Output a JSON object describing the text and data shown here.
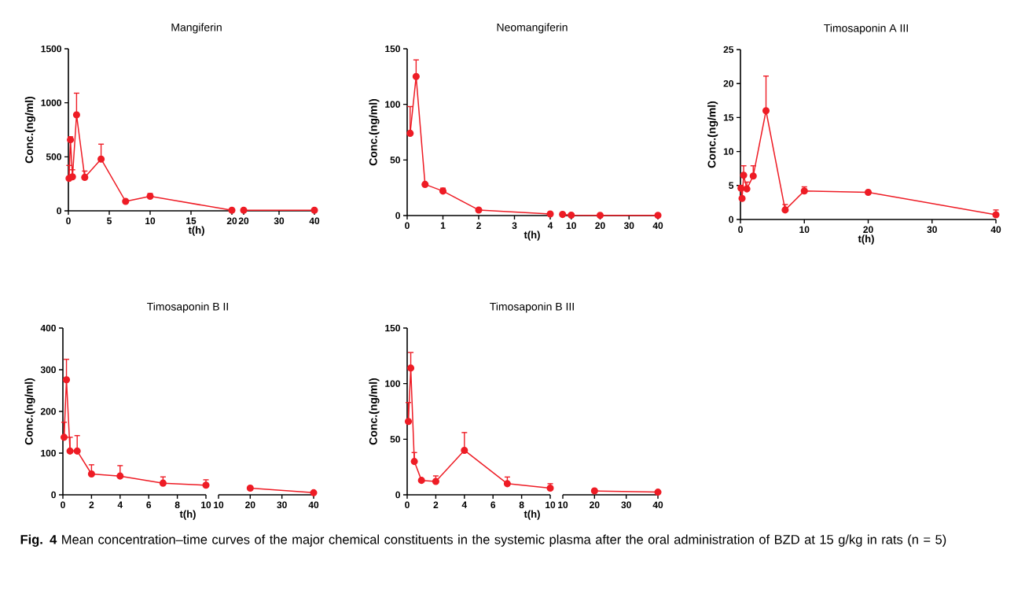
{
  "chart_data": [
    {
      "type": "line",
      "title": "Mangiferin",
      "xlabel": "t(h)",
      "ylabel": "Conc.(ng/ml)",
      "color": "#ee1c25",
      "marker": "circle",
      "x": [
        0.083,
        0.25,
        0.5,
        1,
        2,
        4,
        7,
        10,
        20
      ],
      "values": [
        300,
        658,
        315,
        888,
        310,
        479,
        87,
        135,
        5
      ],
      "errors": [
        [
          300,
          420
        ],
        [
          658,
          685
        ],
        [
          315,
          380
        ],
        [
          888,
          1089
        ],
        [
          310,
          368
        ],
        [
          479,
          617
        ],
        null,
        [
          135,
          160
        ],
        null
      ],
      "xlim": [
        0,
        20
      ],
      "xticks": [
        0,
        5,
        10,
        15,
        20
      ],
      "ylim": [
        0,
        1500
      ],
      "yticks": [
        0,
        500,
        1000,
        1500
      ],
      "annotations": [
        "**Fig. 4** Mean concentration–time curves of the major chemical constituents in the systemic plasma after the oral administration of BZD at 15 g/kg in rats (n = 5)"
      ]
    },
    {
      "type": "line",
      "color": "#ee1c25",
      "marker": "circle",
      "x": [
        20,
        40
      ],
      "values": [
        5,
        5
      ],
      "xlim": [
        20,
        40
      ],
      "xticks": [
        20,
        30,
        40
      ],
      "ylim": [
        0,
        1500
      ],
      "tick_labels": "x"
    },
    {
      "type": "line",
      "title": "Neomangiferin",
      "xlabel": "t(h)",
      "ylabel": "Conc.(ng/ml)",
      "color": "#ee1c25",
      "marker": "circle",
      "x": [
        0.083,
        0.25,
        0.5,
        1,
        2,
        4
      ],
      "values": [
        74,
        125,
        28,
        22,
        5,
        1.4
      ],
      "errors": [
        [
          74,
          98
        ],
        [
          125,
          140
        ],
        null,
        [
          22,
          24.6
        ],
        null,
        null
      ],
      "xlim": [
        0,
        4
      ],
      "xticks": [
        0,
        1,
        2,
        3,
        4
      ],
      "ylim": [
        0,
        150
      ],
      "yticks": [
        0,
        50,
        100,
        150
      ]
    },
    {
      "type": "line",
      "color": "#ee1c25",
      "marker": "circle",
      "x": [
        7,
        10,
        20,
        40
      ],
      "values": [
        1,
        0.3,
        0.2,
        0.2
      ],
      "xlim": [
        6,
        40
      ],
      "xticks": [
        10,
        20,
        30,
        40
      ],
      "ylim": [
        0,
        150
      ],
      "tick_labels": "x"
    },
    {
      "type": "line",
      "title": "Timosaponin A III",
      "xlabel": "t(h)",
      "ylabel": "Conc.(ng/ml)",
      "color": "#ee1c25",
      "marker": "circle",
      "x": [
        0.083,
        0.25,
        0.5,
        1,
        2,
        4,
        7,
        10,
        20,
        40
      ],
      "values": [
        4.6,
        3.1,
        6.5,
        4.5,
        6.4,
        16,
        1.4,
        4.2,
        4.0,
        0.7
      ],
      "errors": [
        [
          4.6,
          5.0
        ],
        null,
        [
          6.5,
          7.9
        ],
        [
          4.5,
          5.5
        ],
        [
          6.4,
          7.9
        ],
        [
          16,
          21.1
        ],
        [
          1.4,
          2.2
        ],
        [
          4.2,
          4.8
        ],
        null,
        [
          0.7,
          1.4
        ]
      ],
      "xlim": [
        0,
        40
      ],
      "xticks": [
        0,
        10,
        20,
        30,
        40
      ],
      "ylim": [
        0,
        25
      ],
      "yticks": [
        0,
        5,
        10,
        15,
        20,
        25
      ]
    },
    {
      "type": "line",
      "title": "Timosaponin B II",
      "xlabel": "t(h)",
      "ylabel": "Conc.(ng/ml)",
      "color": "#ee1c25",
      "marker": "circle",
      "x": [
        0.083,
        0.25,
        0.5,
        1,
        2,
        4,
        7,
        10
      ],
      "values": [
        138,
        276,
        105,
        105,
        50,
        45,
        28,
        23
      ],
      "errors": [
        [
          138,
          174
        ],
        [
          276,
          325
        ],
        [
          105,
          138
        ],
        [
          105,
          142
        ],
        [
          50,
          72
        ],
        [
          45,
          70
        ],
        [
          28,
          43
        ],
        [
          23,
          36
        ]
      ],
      "xlim": [
        0,
        10
      ],
      "xticks": [
        0,
        2,
        4,
        6,
        8,
        10
      ],
      "ylim": [
        0,
        400
      ],
      "yticks": [
        0,
        100,
        200,
        300,
        400
      ]
    },
    {
      "type": "line",
      "color": "#ee1c25",
      "marker": "circle",
      "x": [
        20,
        40
      ],
      "values": [
        16,
        5
      ],
      "xlim": [
        10,
        40
      ],
      "xticks": [
        10,
        20,
        30,
        40
      ],
      "ylim": [
        0,
        400
      ],
      "tick_labels": "x"
    },
    {
      "type": "line",
      "title": "Timosaponin B III",
      "xlabel": "t(h)",
      "ylabel": "Conc.(ng/ml)",
      "color": "#ee1c25",
      "marker": "circle",
      "x": [
        0.083,
        0.25,
        0.5,
        1,
        2,
        4,
        7,
        10
      ],
      "values": [
        66,
        114,
        30,
        13,
        12,
        40,
        10,
        6
      ],
      "errors": [
        [
          66,
          83
        ],
        [
          114,
          128
        ],
        [
          30,
          38
        ],
        null,
        [
          12,
          17
        ],
        [
          40,
          56
        ],
        [
          10,
          16
        ],
        [
          6,
          10
        ]
      ],
      "xlim": [
        0,
        10
      ],
      "xticks": [
        0,
        2,
        4,
        6,
        8,
        10
      ],
      "ylim": [
        0,
        150
      ],
      "yticks": [
        0,
        50,
        100,
        150
      ]
    },
    {
      "type": "line",
      "color": "#ee1c25",
      "marker": "circle",
      "x": [
        20,
        40
      ],
      "values": [
        3.5,
        2.4
      ],
      "xlim": [
        10,
        40
      ],
      "xticks": [
        10,
        20,
        30,
        40
      ],
      "ylim": [
        0,
        150
      ],
      "tick_labels": "x"
    }
  ]
}
